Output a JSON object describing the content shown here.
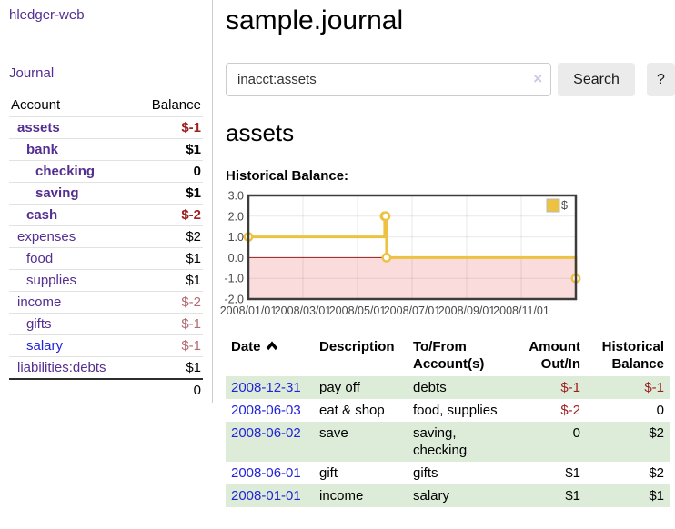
{
  "brand": "hledger-web",
  "nav": {
    "journal_label": "Journal"
  },
  "sidebar": {
    "headers": {
      "account": "Account",
      "balance": "Balance"
    },
    "accounts": [
      {
        "name": "assets",
        "depth": 1,
        "balance": "$-1",
        "bold": true,
        "negative": true
      },
      {
        "name": "bank",
        "depth": 2,
        "balance": "$1",
        "bold": true
      },
      {
        "name": "checking",
        "depth": 3,
        "balance": "0",
        "bold": true
      },
      {
        "name": "saving",
        "depth": 3,
        "balance": "$1",
        "bold": true
      },
      {
        "name": "cash",
        "depth": 2,
        "balance": "$-2",
        "bold": true,
        "negative": true
      },
      {
        "name": "expenses",
        "depth": 1,
        "balance": "$2"
      },
      {
        "name": "food",
        "depth": 2,
        "balance": "$1"
      },
      {
        "name": "supplies",
        "depth": 2,
        "balance": "$1"
      },
      {
        "name": "income",
        "depth": 1,
        "balance": "$-2",
        "negative": "soft"
      },
      {
        "name": "gifts",
        "depth": 2,
        "balance": "$-1",
        "negative": "soft"
      },
      {
        "name": "salary",
        "depth": 2,
        "balance": "$-1",
        "negative": "soft",
        "link_style": "unvisited"
      },
      {
        "name": "liabilities:debts",
        "depth": 1,
        "balance": "$1"
      }
    ],
    "total": "0"
  },
  "header": {
    "title": "sample.journal"
  },
  "search": {
    "value": "inacct:assets",
    "clear_icon": "×",
    "button_label": "Search",
    "help_label": "?"
  },
  "account_page": {
    "title": "assets",
    "chart_label": "Historical Balance:"
  },
  "chart_data": {
    "type": "line",
    "step": true,
    "title": "Historical Balance:",
    "series": [
      {
        "name": "$",
        "color": "#edc240",
        "points": [
          [
            "2008-01-01",
            1.0
          ],
          [
            "2008-06-01",
            2.0
          ],
          [
            "2008-06-02",
            2.0
          ],
          [
            "2008-06-03",
            0.0
          ],
          [
            "2008-12-31",
            -1.0
          ]
        ]
      }
    ],
    "x_range": [
      "2008-01-01",
      "2008-12-31"
    ],
    "x_ticks": [
      "2008/01/01",
      "2008/03/01",
      "2008/05/01",
      "2008/07/01",
      "2008/09/01",
      "2008/11/01"
    ],
    "y_ticks": [
      "3.0",
      "2.0",
      "1.0",
      "0.0",
      "-1.0",
      "-2.0"
    ],
    "ylim": [
      -2.0,
      3.0
    ],
    "grid": true,
    "legend": {
      "label": "$",
      "position": "top-right"
    },
    "negative_region": true
  },
  "register": {
    "columns": [
      "Date",
      "Description",
      "To/From Account(s)",
      "Amount Out/In",
      "Historical Balance"
    ],
    "rows": [
      {
        "date": "2008-12-31",
        "description": "pay off",
        "accounts": "debts",
        "amount": "$-1",
        "balance": "$-1",
        "amount_negative": true,
        "balance_negative": true
      },
      {
        "date": "2008-06-03",
        "description": "eat & shop",
        "accounts": "food, supplies",
        "amount": "$-2",
        "balance": "0",
        "amount_negative": true
      },
      {
        "date": "2008-06-02",
        "description": "save",
        "accounts": "saving, checking",
        "amount": "0",
        "balance": "$2"
      },
      {
        "date": "2008-06-01",
        "description": "gift",
        "accounts": "gifts",
        "amount": "$1",
        "balance": "$2"
      },
      {
        "date": "2008-01-01",
        "description": "income",
        "accounts": "salary",
        "amount": "$1",
        "balance": "$1"
      }
    ]
  },
  "colors": {
    "link_visited_purple": "#542e91",
    "link_blue": "#2323d8",
    "negative_red": "#9d1f1f",
    "negative_soft_red": "#b56a72",
    "row_stripe_green": "#dcecd9",
    "chart_line_yellow": "#edc240",
    "chart_negative_fill_pink": "#fbdcdc",
    "chart_zero_line_maroon": "#8f1e1e"
  }
}
